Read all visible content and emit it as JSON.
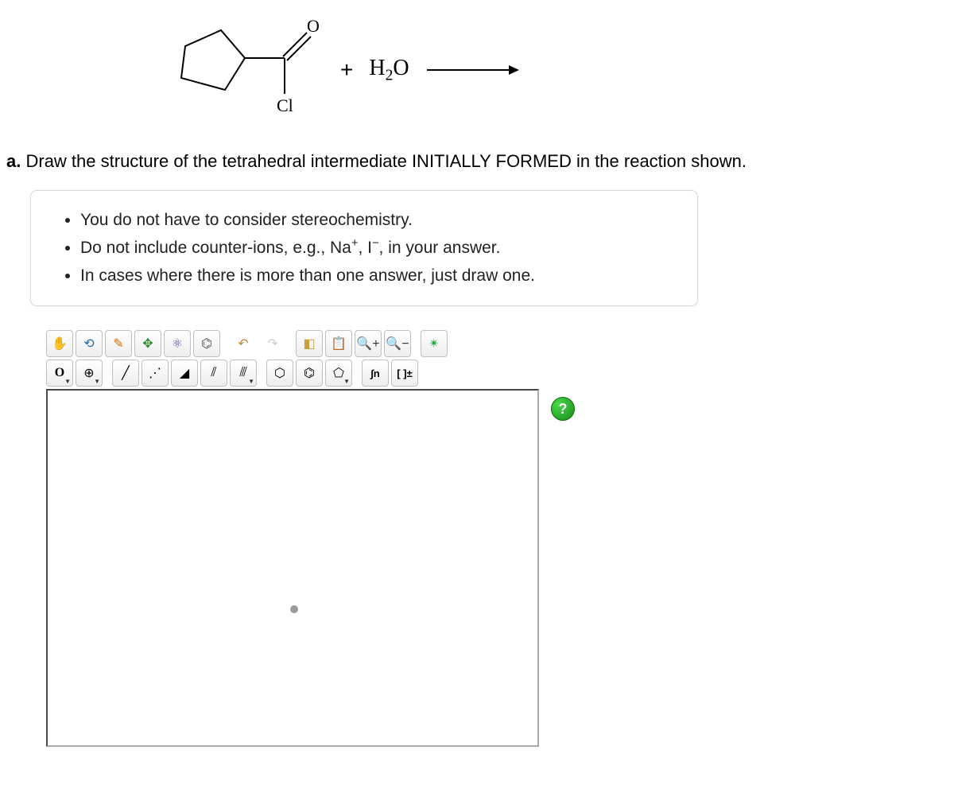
{
  "reaction": {
    "reagent_label_top": "O",
    "reagent_label_bottom": "Cl",
    "plus": "+",
    "solvent_html": "H₂O",
    "svg_colors": {
      "stroke": "#000000",
      "stroke_width": 2
    }
  },
  "prompt": {
    "part_label": "a.",
    "text": "Draw the structure of the tetrahedral intermediate INITIALLY FORMED in the reaction shown."
  },
  "hints": {
    "items": [
      "You do not have to consider stereochemistry.",
      "Do not include counter-ions, e.g., Na⁺, I⁻, in your answer.",
      "In cases where there is more than one answer, just draw one."
    ]
  },
  "toolbar": {
    "row1": [
      {
        "name": "hand-tool",
        "glyph": "✋",
        "color": "#d08a3a"
      },
      {
        "name": "lasso-tool",
        "glyph": "⟲",
        "color": "#2a6db0"
      },
      {
        "name": "pencil-tool",
        "glyph": "✎",
        "color": "#d66a00"
      },
      {
        "name": "move-tool",
        "glyph": "✥",
        "color": "#2a8a2a"
      },
      {
        "name": "template-tool",
        "glyph": "⚛",
        "color": "#6a4aa0"
      },
      {
        "name": "fragment-tool",
        "glyph": "⌬",
        "color": "#555555"
      },
      {
        "name": "undo-button",
        "glyph": "↶",
        "color": "#c08a30",
        "noborder": true
      },
      {
        "name": "redo-button",
        "glyph": "↷",
        "color": "#cccccc",
        "noborder": true
      },
      {
        "name": "cube-tool",
        "glyph": "◧",
        "color": "#c9a03a"
      },
      {
        "name": "paste-tool",
        "glyph": "📋",
        "color": "#3a8ac9"
      },
      {
        "name": "zoom-in-button",
        "glyph": "🔍+",
        "color": "#333"
      },
      {
        "name": "zoom-out-button",
        "glyph": "🔍−",
        "color": "#333"
      },
      {
        "name": "style-tool",
        "glyph": "✴",
        "color": "#22aa44"
      }
    ],
    "row2": [
      {
        "name": "atom-picker",
        "glyph": "O",
        "dropdown": true,
        "font": "atom"
      },
      {
        "name": "charge-picker",
        "glyph": "⊕",
        "dropdown": true
      },
      {
        "name": "single-bond-tool",
        "glyph": "╱"
      },
      {
        "name": "dotted-bond-tool",
        "glyph": "⋰"
      },
      {
        "name": "wedge-bond-tool",
        "glyph": "◢"
      },
      {
        "name": "double-line-tool",
        "glyph": "⫽"
      },
      {
        "name": "triple-line-tool",
        "glyph": "⫻",
        "dropdown": true
      },
      {
        "name": "ring-tool-hex",
        "glyph": "⬡"
      },
      {
        "name": "ring-tool-benz",
        "glyph": "⌬"
      },
      {
        "name": "ring-tool-pent",
        "glyph": "⬠",
        "dropdown": true
      },
      {
        "name": "chain-tool",
        "glyph": "∫n",
        "font": "text"
      },
      {
        "name": "bracket-tool",
        "glyph": "[ ]±",
        "font": "text"
      }
    ]
  },
  "help": {
    "label": "?"
  },
  "colors": {
    "border": "#bfbfbf",
    "canvas_border": "#4a4a4a",
    "hint_border": "#d8d8d8",
    "dot": "#9a9a9a"
  }
}
